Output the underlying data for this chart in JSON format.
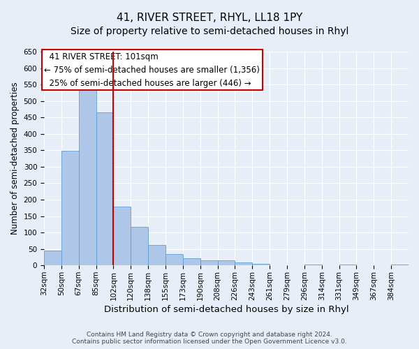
{
  "title": "41, RIVER STREET, RHYL, LL18 1PY",
  "subtitle": "Size of property relative to semi-detached houses in Rhyl",
  "xlabel": "Distribution of semi-detached houses by size in Rhyl",
  "ylabel": "Number of semi-detached properties",
  "bar_labels": [
    "32sqm",
    "50sqm",
    "67sqm",
    "85sqm",
    "102sqm",
    "120sqm",
    "138sqm",
    "155sqm",
    "173sqm",
    "190sqm",
    "208sqm",
    "226sqm",
    "243sqm",
    "261sqm",
    "279sqm",
    "296sqm",
    "314sqm",
    "331sqm",
    "349sqm",
    "367sqm",
    "384sqm"
  ],
  "bar_values": [
    46,
    348,
    535,
    465,
    178,
    118,
    62,
    35,
    22,
    15,
    15,
    10,
    5,
    0,
    0,
    2,
    0,
    2,
    0,
    0,
    2
  ],
  "property_line_label": "102sqm",
  "property_size": "101sqm",
  "pct_smaller": 75,
  "n_smaller": 1356,
  "pct_larger": 25,
  "n_larger": 446,
  "bar_color": "#aec6e8",
  "bar_edge_color": "#5a9fd4",
  "line_color": "#cc0000",
  "box_color": "#ffffff",
  "box_edge_color": "#cc0000",
  "background_color": "#e8eef8",
  "grid_color": "#ffffff",
  "ylim": [
    0,
    650
  ],
  "yticks": [
    0,
    50,
    100,
    150,
    200,
    250,
    300,
    350,
    400,
    450,
    500,
    550,
    600,
    650
  ],
  "footer": "Contains HM Land Registry data © Crown copyright and database right 2024.\nContains public sector information licensed under the Open Government Licence v3.0.",
  "title_fontsize": 11,
  "subtitle_fontsize": 10,
  "xlabel_fontsize": 9.5,
  "ylabel_fontsize": 8.5,
  "tick_fontsize": 7.5,
  "annotation_fontsize": 8.5,
  "footer_fontsize": 6.5
}
